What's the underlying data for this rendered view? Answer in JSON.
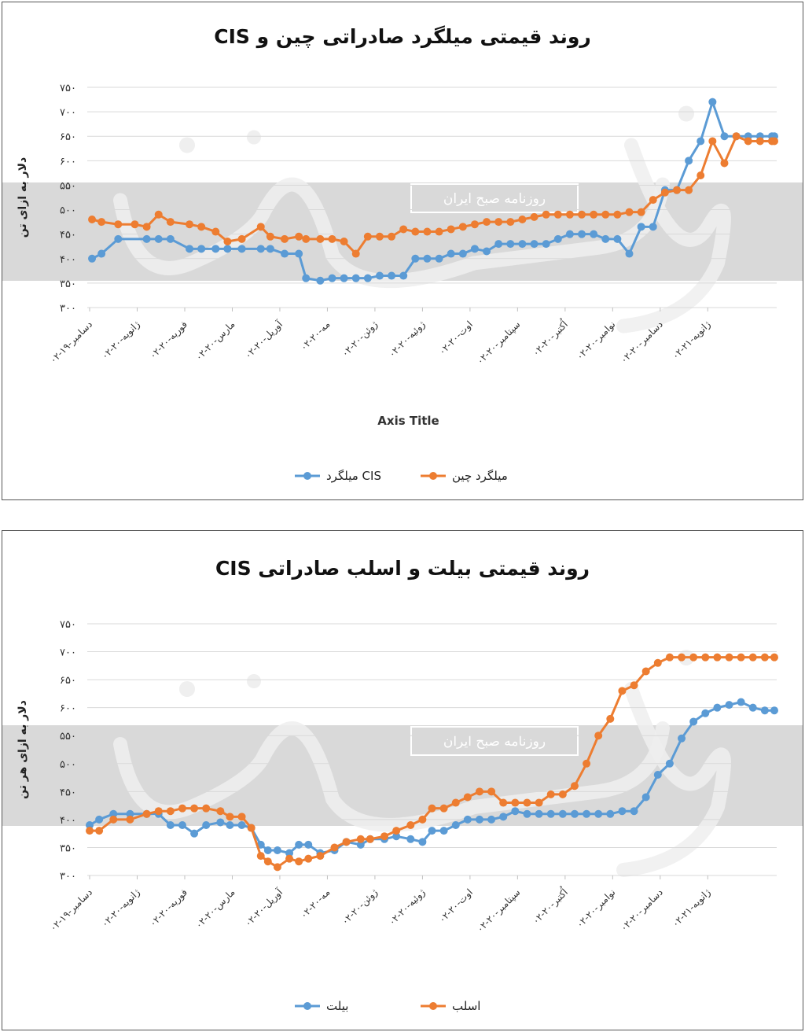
{
  "watermark": {
    "text": "روزنامه صبح ایران"
  },
  "colors": {
    "cis": "#5b9bd5",
    "china": "#ed7d31",
    "billet": "#5b9bd5",
    "slab": "#ed7d31",
    "grid": "#d9d9d9",
    "band": "#d9d9d9"
  },
  "chart_data": [
    {
      "type": "line",
      "title": "روند قیمتی میلگرد صادراتی چین و CIS",
      "ylabel": "دلار به ازای تن",
      "xlabel": "Axis Title",
      "yticks": [
        "۳۰۰",
        "۳۵۰",
        "۴۰۰",
        "۴۵۰",
        "۵۰۰",
        "۵۵۰",
        "۶۰۰",
        "۶۵۰",
        "۷۰۰",
        "۷۵۰"
      ],
      "ylim": [
        300,
        750
      ],
      "categories": [
        "۰۲-دسامبر-۱۹",
        "۰۲-ژانویه-۲۰",
        "۰۲-فوریه-۲۰",
        "۰۲-مارس-۲۰",
        "۰۲-آوریل-۲۰",
        "۰۲-مه-۲۰",
        "۰۲-ژوئن-۲۰",
        "۰۲-ژوئیه-۲۰",
        "۰۲-اوت-۲۰",
        "۰۲-سپتامبر-۲۰",
        "۰۲-اُکتبر-۲۰",
        "۰۲-نوامبر-۲۰",
        "۰۲-دسامبر-۲۰",
        "۰۲-ژانویه-۲۱"
      ],
      "x_extent": 14.5,
      "legend_position": "bottom",
      "grid": true,
      "series": [
        {
          "name": "میلگرد CIS",
          "color": "#5b9bd5",
          "x": [
            0.1,
            0.3,
            0.65,
            1.25,
            1.5,
            1.75,
            2.15,
            2.4,
            2.7,
            2.95,
            3.25,
            3.65,
            3.85,
            4.15,
            4.45,
            4.6,
            4.9,
            5.15,
            5.4,
            5.65,
            5.9,
            6.15,
            6.4,
            6.65,
            6.9,
            7.15,
            7.4,
            7.65,
            7.9,
            8.15,
            8.4,
            8.65,
            8.9,
            9.15,
            9.4,
            9.65,
            9.9,
            10.15,
            10.4,
            10.65,
            10.9,
            11.15,
            11.4,
            11.65,
            11.9,
            12.15,
            12.4,
            12.65,
            12.9,
            13.15,
            13.4,
            13.65,
            13.9,
            14.15,
            14.4,
            14.45
          ],
          "values": [
            400,
            410,
            440,
            440,
            440,
            440,
            420,
            420,
            420,
            420,
            420,
            420,
            420,
            410,
            410,
            360,
            355,
            360,
            360,
            360,
            360,
            365,
            365,
            365,
            400,
            400,
            400,
            410,
            410,
            420,
            415,
            430,
            430,
            430,
            430,
            430,
            440,
            450,
            450,
            450,
            440,
            440,
            410,
            465,
            465,
            540,
            540,
            600,
            640,
            720,
            650,
            650,
            650,
            650,
            650,
            650
          ]
        },
        {
          "name": "میلگرد چین",
          "color": "#ed7d31",
          "x": [
            0.1,
            0.3,
            0.65,
            1.0,
            1.25,
            1.5,
            1.75,
            2.15,
            2.4,
            2.7,
            2.95,
            3.25,
            3.65,
            3.85,
            4.15,
            4.45,
            4.6,
            4.9,
            5.15,
            5.4,
            5.65,
            5.9,
            6.15,
            6.4,
            6.65,
            6.9,
            7.15,
            7.4,
            7.65,
            7.9,
            8.15,
            8.4,
            8.65,
            8.9,
            9.15,
            9.4,
            9.65,
            9.9,
            10.15,
            10.4,
            10.65,
            10.9,
            11.15,
            11.4,
            11.65,
            11.9,
            12.15,
            12.4,
            12.65,
            12.9,
            13.15,
            13.4,
            13.65,
            13.9,
            14.15,
            14.4,
            14.45
          ],
          "values": [
            480,
            475,
            470,
            470,
            465,
            490,
            475,
            470,
            465,
            455,
            435,
            440,
            465,
            445,
            440,
            445,
            440,
            440,
            440,
            435,
            410,
            445,
            445,
            445,
            460,
            455,
            455,
            455,
            460,
            465,
            470,
            475,
            475,
            475,
            480,
            485,
            490,
            490,
            490,
            490,
            490,
            490,
            490,
            495,
            495,
            520,
            535,
            540,
            540,
            570,
            640,
            595,
            650,
            640,
            640,
            640,
            640
          ]
        }
      ]
    },
    {
      "type": "line",
      "title": "روند قیمتی بیلت و اسلب صادراتی CIS",
      "ylabel": "دلار به ازای هر تن",
      "yticks": [
        "۳۰۰",
        "۳۵۰",
        "۴۰۰",
        "۴۵۰",
        "۵۰۰",
        "۵۵۰",
        "۶۰۰",
        "۶۵۰",
        "۷۰۰",
        "۷۵۰"
      ],
      "ylim": [
        300,
        750
      ],
      "categories": [
        "۰۲-دسامبر-۱۹",
        "۰۲-ژانویه-۲۰",
        "۰۲-فوریه-۲۰",
        "۰۲-مارس-۲۰",
        "۰۲-آوریل-۲۰",
        "۰۲-مه-۲۰",
        "۰۲-ژوئن-۲۰",
        "۰۲-ژوئیه-۲۰",
        "۰۲-اوت-۲۰",
        "۰۲-سپتامبر-۲۰",
        "۰۲-اُکتبر-۲۰",
        "۰۲-نوامبر-۲۰",
        "۰۲-دسامبر-۲۰",
        "۰۲-ژانویه-۲۱"
      ],
      "x_extent": 14.5,
      "legend_position": "bottom",
      "grid": true,
      "series": [
        {
          "name": "بیلت",
          "color": "#5b9bd5",
          "x": [
            0.05,
            0.25,
            0.55,
            0.9,
            1.25,
            1.5,
            1.75,
            2.0,
            2.25,
            2.5,
            2.8,
            3.0,
            3.25,
            3.45,
            3.65,
            3.8,
            4.0,
            4.25,
            4.45,
            4.65,
            4.9,
            5.2,
            5.45,
            5.75,
            5.95,
            6.25,
            6.5,
            6.8,
            7.05,
            7.25,
            7.5,
            7.75,
            8.0,
            8.25,
            8.5,
            8.75,
            9.0,
            9.25,
            9.5,
            9.75,
            10.0,
            10.25,
            10.5,
            10.75,
            11.0,
            11.25,
            11.5,
            11.75,
            12.0,
            12.25,
            12.5,
            12.75,
            13.0,
            13.25,
            13.5,
            13.75,
            14.0,
            14.25,
            14.45
          ],
          "values": [
            390,
            400,
            410,
            410,
            410,
            410,
            390,
            390,
            375,
            390,
            395,
            390,
            390,
            385,
            355,
            345,
            345,
            340,
            355,
            355,
            340,
            345,
            360,
            355,
            365,
            365,
            370,
            365,
            360,
            380,
            380,
            390,
            400,
            400,
            400,
            405,
            415,
            410,
            410,
            410,
            410,
            410,
            410,
            410,
            410,
            415,
            415,
            440,
            480,
            500,
            545,
            575,
            590,
            600,
            605,
            610,
            600,
            595,
            595
          ]
        },
        {
          "name": "اسلب",
          "color": "#ed7d31",
          "x": [
            0.05,
            0.25,
            0.55,
            0.9,
            1.25,
            1.5,
            1.75,
            2.0,
            2.25,
            2.5,
            2.8,
            3.0,
            3.25,
            3.45,
            3.65,
            3.8,
            4.0,
            4.25,
            4.45,
            4.65,
            4.9,
            5.2,
            5.45,
            5.75,
            5.95,
            6.25,
            6.5,
            6.8,
            7.05,
            7.25,
            7.5,
            7.75,
            8.0,
            8.25,
            8.5,
            8.75,
            9.0,
            9.25,
            9.5,
            9.75,
            10.0,
            10.25,
            10.5,
            10.75,
            11.0,
            11.25,
            11.5,
            11.75,
            12.0,
            12.25,
            12.5,
            12.75,
            13.0,
            13.25,
            13.5,
            13.75,
            14.0,
            14.25,
            14.45
          ],
          "values": [
            380,
            380,
            400,
            400,
            410,
            415,
            415,
            420,
            420,
            420,
            415,
            405,
            405,
            385,
            335,
            325,
            315,
            330,
            325,
            330,
            335,
            350,
            360,
            365,
            365,
            370,
            380,
            390,
            400,
            420,
            420,
            430,
            440,
            450,
            450,
            430,
            430,
            430,
            430,
            445,
            445,
            460,
            500,
            550,
            580,
            630,
            640,
            665,
            680,
            690,
            690,
            690,
            690,
            690,
            690,
            690,
            690,
            690,
            690
          ]
        }
      ]
    }
  ]
}
